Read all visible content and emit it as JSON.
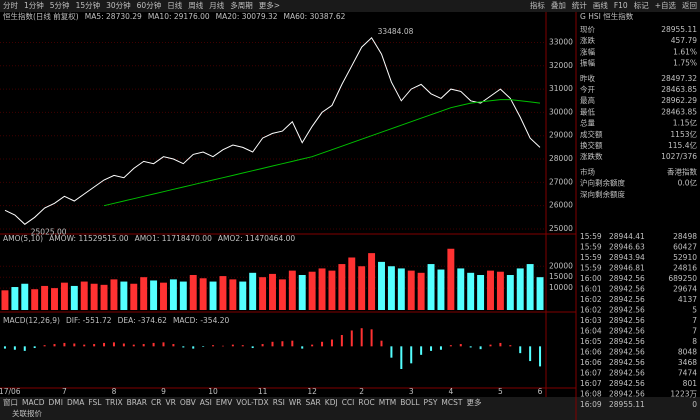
{
  "toolbar": {
    "left": [
      "分时",
      "1分钟",
      "5分钟",
      "15分钟",
      "30分钟",
      "60分钟",
      "日线",
      "周线",
      "月线",
      "多周期",
      "更多>"
    ],
    "right": [
      "指标",
      "叠加",
      "统计",
      "画线",
      "F10",
      "标记",
      "+自选",
      "返回"
    ]
  },
  "main_chart": {
    "type": "line",
    "header": [
      "恒生指数(日线 前复权)",
      "MA5: 28730.29",
      "MA10: 29176.00",
      "MA20: 30079.32",
      "MA60: 30387.62"
    ],
    "categories": [
      "2017/06",
      null,
      null,
      null,
      null,
      null,
      "7",
      null,
      null,
      null,
      null,
      "8",
      null,
      null,
      null,
      null,
      "9",
      null,
      null,
      null,
      null,
      "10",
      null,
      null,
      null,
      null,
      "11",
      null,
      null,
      null,
      null,
      "12",
      null,
      null,
      null,
      null,
      "2",
      null,
      null,
      null,
      null,
      "3",
      null,
      null,
      null,
      "4",
      null,
      null,
      null,
      null,
      "5",
      null,
      null,
      null,
      "6"
    ],
    "series": [
      {
        "name": "收盘",
        "color": "#ffffff",
        "values": [
          25800,
          25600,
          25200,
          25500,
          25900,
          26100,
          26400,
          26200,
          26500,
          26800,
          27100,
          27300,
          27200,
          27600,
          27900,
          27800,
          28100,
          28000,
          27800,
          28200,
          28300,
          28100,
          28400,
          28600,
          28500,
          28300,
          28900,
          29100,
          29200,
          29600,
          28700,
          29400,
          30000,
          30300,
          31200,
          32000,
          32800,
          33200,
          32500,
          31300,
          30500,
          31000,
          31200,
          30800,
          30600,
          31000,
          30900,
          30500,
          30400,
          30700,
          31000,
          30600,
          29800,
          28900,
          28500
        ]
      },
      {
        "name": "MA60",
        "color": "#00c000",
        "values": [
          null,
          null,
          null,
          null,
          null,
          null,
          null,
          null,
          null,
          null,
          26000,
          26100,
          26200,
          26300,
          26400,
          26500,
          26600,
          26700,
          26800,
          26900,
          27000,
          27100,
          27200,
          27300,
          27400,
          27500,
          27600,
          27700,
          27800,
          27900,
          28000,
          28100,
          28250,
          28400,
          28550,
          28700,
          28850,
          29000,
          29150,
          29300,
          29450,
          29600,
          29750,
          29900,
          30050,
          30200,
          30300,
          30400,
          30450,
          30500,
          30550,
          30550,
          30500,
          30450,
          30400
        ]
      }
    ],
    "annotations": [
      "33484.08",
      "25025.00"
    ],
    "ylim": [
      24870,
      34050
    ],
    "yticks": [
      33000,
      32000,
      31000,
      30000,
      29000,
      28000,
      27000,
      26000,
      25000
    ]
  },
  "volume_chart": {
    "type": "bar",
    "header": [
      "AMO(5,10)",
      "AMOW: 11529515.00",
      "AMO1: 11718470.00",
      "AMO2: 11470464.00"
    ],
    "values": [
      9000,
      10500,
      12000,
      9500,
      11000,
      10000,
      12500,
      11000,
      13000,
      12000,
      11500,
      14000,
      13000,
      12000,
      15000,
      13500,
      12500,
      14000,
      13000,
      16000,
      14500,
      13000,
      15500,
      14000,
      13000,
      17000,
      15000,
      16500,
      14000,
      18000,
      16000,
      17500,
      19000,
      18000,
      21000,
      24000,
      20000,
      26000,
      22000,
      20000,
      19000,
      18000,
      17000,
      21000,
      18500,
      28000,
      19000,
      17000,
      16000,
      18000,
      17500,
      16000,
      19000,
      21000,
      15000
    ],
    "ylim": [
      0,
      32000
    ],
    "yticks": [
      20000,
      15000,
      10000
    ]
  },
  "macd_chart": {
    "type": "bar",
    "header": [
      "MACD(12,26,9)",
      "DIF: -551.72",
      "DEA: -374.62",
      "MACD: -354.20"
    ],
    "values": [
      -40,
      -60,
      -80,
      -30,
      20,
      40,
      60,
      50,
      30,
      40,
      60,
      70,
      50,
      30,
      40,
      60,
      70,
      40,
      -20,
      -40,
      -10,
      20,
      10,
      30,
      20,
      -30,
      40,
      80,
      90,
      100,
      -40,
      30,
      80,
      120,
      200,
      280,
      320,
      300,
      100,
      -200,
      -400,
      -300,
      -150,
      -80,
      -60,
      20,
      40,
      -20,
      -50,
      30,
      60,
      20,
      -120,
      -260,
      -354
    ],
    "ylim": [
      -700,
      500
    ]
  },
  "quote_panel": {
    "title": "G HSI 恒生指数",
    "rows": [
      [
        "现价",
        "28955.11"
      ],
      [
        "涨跌",
        "457.79"
      ],
      [
        "涨幅",
        "1.61%"
      ],
      [
        "振幅",
        "1.75%"
      ],
      [
        "昨收",
        "28497.32"
      ],
      [
        "今开",
        "28463.85"
      ],
      [
        "最高",
        "28962.29"
      ],
      [
        "最低",
        "28463.85"
      ],
      [
        "总量",
        "1.15亿"
      ],
      [
        "成交额",
        "1153亿"
      ],
      [
        "换交额",
        "115.4亿"
      ],
      [
        "涨跌数",
        "1027/376"
      ],
      [
        "市场",
        "香港指数"
      ],
      [
        "沪向剩余额度",
        "0.0亿"
      ],
      [
        "深向剩余额度",
        ""
      ]
    ]
  },
  "ticks_table": {
    "rows": [
      [
        "15:59",
        "28944.41",
        "28498"
      ],
      [
        "15:59",
        "28946.63",
        "60427"
      ],
      [
        "15:59",
        "28943.94",
        "52910"
      ],
      [
        "15:59",
        "28946.81",
        "24816"
      ],
      [
        "16:00",
        "28942.56",
        "689250"
      ],
      [
        "16:01",
        "28942.56",
        "29674"
      ],
      [
        "16:02",
        "28942.56",
        "4137"
      ],
      [
        "16:02",
        "28942.56",
        "5"
      ],
      [
        "16:03",
        "28942.56",
        "7"
      ],
      [
        "16:04",
        "28942.56",
        "7"
      ],
      [
        "16:05",
        "28942.56",
        "8"
      ],
      [
        "16:06",
        "28942.56",
        "8048"
      ],
      [
        "16:06",
        "28942.56",
        "3468"
      ],
      [
        "16:07",
        "28942.56",
        "7474"
      ],
      [
        "16:07",
        "28942.56",
        "801"
      ],
      [
        "16:08",
        "28942.56",
        "1223万"
      ],
      [
        "16:09",
        "28955.11",
        "0"
      ]
    ]
  },
  "bottom_tabs": [
    "窗口",
    "MACD",
    "DMI",
    "DMA",
    "FSL",
    "TRIX",
    "BRAR",
    "CR",
    "VR",
    "OBV",
    "ASI",
    "EMV",
    "VOL-TDX",
    "RSI",
    "WR",
    "SAR",
    "KDJ",
    "CCI",
    "ROC",
    "MTM",
    "BOLL",
    "PSY",
    "MCST",
    "更多"
  ],
  "status": "关联报价"
}
